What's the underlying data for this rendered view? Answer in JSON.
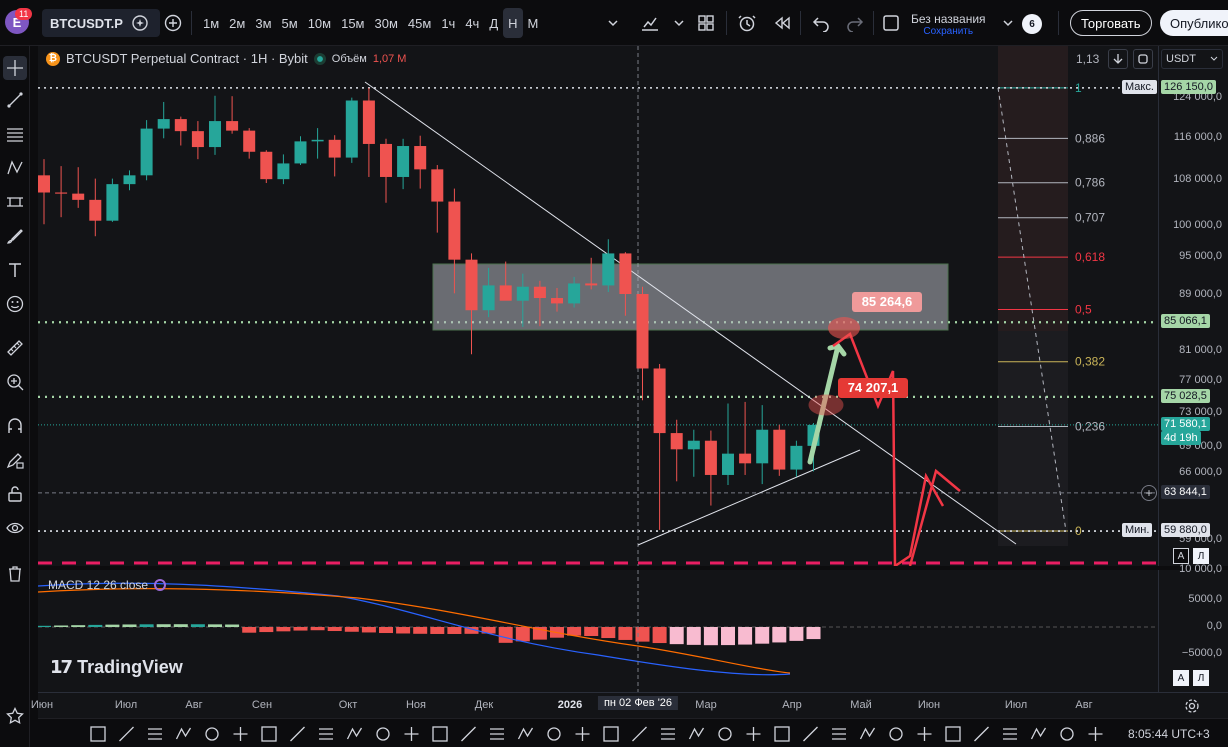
{
  "topbar": {
    "avatar_letter": "E",
    "notification_count": "11",
    "symbol": "BTCUSDT.P",
    "timeframes": [
      "1м",
      "2м",
      "3м",
      "5м",
      "10м",
      "15м",
      "30м",
      "45м",
      "1ч",
      "4ч",
      "Д",
      "Н",
      "М"
    ],
    "active_timeframe": "Н",
    "layout_name": "Без названия",
    "layout_save": "Сохранить",
    "layout_badge": "6",
    "trade_button": "Торговать",
    "publish_button": "Опублико"
  },
  "chart": {
    "title": "BTCUSDT Perpetual Contract · 1H · Bybit",
    "volume_label": "Объём",
    "volume_value": "1,07 M",
    "currency": "USDT",
    "tv_logo": "TradingView",
    "annotations": {
      "target": "85 264,6",
      "mid": "74 207,1"
    }
  },
  "price_axis": {
    "labels": [
      "124 000,0",
      "116 000,0",
      "108 000,0",
      "100 000,0",
      "95 000,0",
      "89 000,0",
      "81 000,0",
      "77 000,0",
      "73 000,0",
      "69 000,0",
      "66 000,0",
      "59 000,0"
    ],
    "tags": {
      "max_label": "Макс.",
      "max_value": "126 150,0",
      "level1": "85 066,1",
      "level2": "75 028,5",
      "last": "71 580,1",
      "countdown": "4d 19h",
      "cursor": "63 844,1",
      "min_label": "Мин.",
      "min_value": "59 880,0"
    },
    "top_value": "1,13"
  },
  "fib_levels": [
    "1",
    "0,886",
    "0,786",
    "0,707",
    "0,618",
    "0,5",
    "0,382",
    "0,236",
    "0"
  ],
  "macd": {
    "title": "MACD 12 26 close",
    "labels": [
      "10 000,0",
      "5000,0",
      "0,0",
      "−5000,0"
    ]
  },
  "time_axis": {
    "labels": [
      "Июн",
      "Июл",
      "Авг",
      "Сен",
      "Окт",
      "Ноя",
      "Дек",
      "2026",
      "пн 02 Фев '26",
      "Мар",
      "Апр",
      "Май",
      "Июн",
      "Июл",
      "Авг"
    ]
  },
  "bottombar": {
    "clock": "8:05:44 UTC+3"
  },
  "colors": {
    "up": "#26a69a",
    "down": "#ef5350",
    "fib_red": "#f23645",
    "fib_yellow": "#c9b458"
  },
  "chart_data": {
    "type": "candlestick",
    "x": [
      "Май 26",
      "Июн 02",
      "Июн 09",
      "Июн 16",
      "Июн 23",
      "Июн 30",
      "Июл 07",
      "Июл 14",
      "Июл 21",
      "Июл 28",
      "Авг 04",
      "Авг 11",
      "Авг 18",
      "Авг 25",
      "Сен 01",
      "Сен 08",
      "Сен 15",
      "Сен 22",
      "Сен 29",
      "Окт 06",
      "Окт 13",
      "Окт 20",
      "Окт 27",
      "Ноя 03",
      "Ноя 10",
      "Ноя 17",
      "Ноя 24",
      "Дек 01",
      "Дек 08",
      "Дек 15",
      "Дек 22",
      "Дек 29",
      "Янв 05",
      "Янв 12",
      "Янв 19",
      "Янв 26",
      "Фев 02",
      "Фев 09",
      "Фев 16",
      "Фев 23",
      "Мар 02",
      "Мар 09",
      "Мар 16",
      "Мар 23",
      "Мар 30",
      "Апр 06"
    ],
    "series": [
      {
        "name": "BTCUSDT.P",
        "open": [
          108900,
          105800,
          105600,
          104500,
          100900,
          107300,
          108900,
          117800,
          119700,
          117300,
          114200,
          119300,
          117400,
          113300,
          108200,
          111100,
          115300,
          115600,
          112200,
          123500,
          114800,
          108600,
          114400,
          110000,
          104200,
          94500,
          86800,
          90500,
          88200,
          90300,
          88600,
          87800,
          90800,
          90500,
          95500,
          89200,
          78700,
          70600,
          68700,
          69700,
          65800,
          68200,
          67100,
          71000,
          66400,
          69100
        ],
        "high": [
          111900,
          110600,
          110400,
          108300,
          108300,
          109800,
          119500,
          123200,
          120200,
          119300,
          124500,
          124400,
          117900,
          113600,
          112800,
          116300,
          117900,
          116500,
          124100,
          126150,
          115800,
          115800,
          116400,
          110800,
          106500,
          95500,
          93200,
          94200,
          92300,
          91200,
          90100,
          91800,
          94800,
          97800,
          95700,
          90300,
          79300,
          72200,
          71000,
          70900,
          74200,
          74400,
          74000,
          71600,
          69700,
          71800
        ],
        "low": [
          100300,
          101500,
          103100,
          98300,
          100700,
          106200,
          108000,
          115900,
          114500,
          111900,
          112700,
          116800,
          112000,
          107500,
          107300,
          110800,
          112000,
          108700,
          111200,
          108600,
          104000,
          106400,
          106500,
          98900,
          89300,
          80600,
          85800,
          88600,
          84400,
          84500,
          86600,
          87200,
          89900,
          89500,
          86000,
          74600,
          60000,
          65100,
          65600,
          62500,
          64700,
          65800,
          64800,
          65700,
          65600,
          66200
        ],
        "close": [
          105800,
          105600,
          104500,
          100900,
          107300,
          108900,
          117800,
          119700,
          117300,
          114200,
          119300,
          117400,
          113300,
          108200,
          111100,
          115300,
          115600,
          112200,
          123500,
          114800,
          108600,
          114400,
          110000,
          104200,
          94500,
          86800,
          90500,
          88200,
          90300,
          88600,
          87800,
          90800,
          90500,
          95500,
          89200,
          78700,
          70600,
          68700,
          69700,
          65800,
          68200,
          67100,
          71000,
          66400,
          69100,
          71580
        ]
      }
    ],
    "ylim": [
      58000,
      130000
    ],
    "ylog": true
  }
}
